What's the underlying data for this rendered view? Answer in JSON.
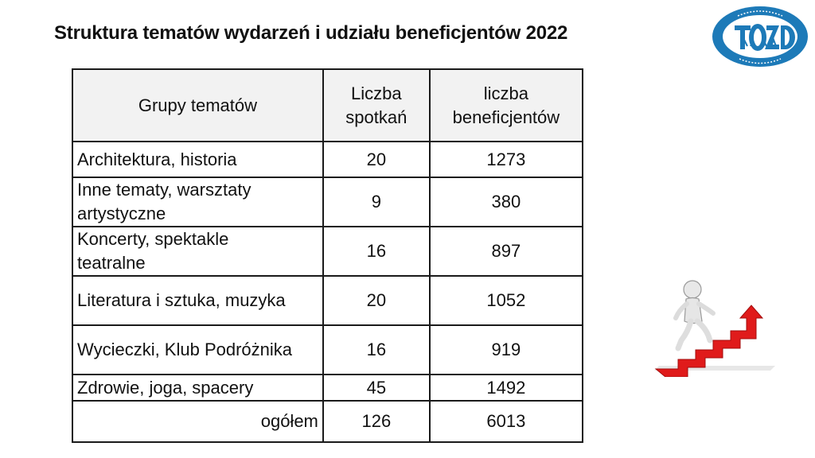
{
  "title": "Struktura  tematów wydarzeń i udziału  beneficjentów 2022",
  "logo": {
    "arc_top": "TOWARZYSTWO OŚWIATOWE",
    "arc_bottom": "ZIEMI DZIERŻONIOWSKIEJ",
    "monogram": "TOZD",
    "color": "#1d7ab8"
  },
  "table": {
    "headers": {
      "group": "Grupy tematów",
      "meetings_line1": "Liczba",
      "meetings_line2": "spotkań",
      "beneficiaries_line1": "liczba",
      "beneficiaries_line2": "beneficjentów"
    },
    "rows": [
      {
        "group_line1": "Architektura, historia",
        "group_line2": "",
        "meetings": "20",
        "beneficiaries": "1273"
      },
      {
        "group_line1": "Inne tematy, warsztaty",
        "group_line2": "artystyczne",
        "meetings": "9",
        "beneficiaries": "380"
      },
      {
        "group_line1": "Koncerty, spektakle",
        "group_line2": "teatralne",
        "meetings": "16",
        "beneficiaries": "897"
      },
      {
        "group_line1": "Literatura i sztuka, muzyka",
        "group_line2": "",
        "meetings": "20",
        "beneficiaries": "1052"
      },
      {
        "group_line1": "Wycieczki, Klub Podróżnika",
        "group_line2": "",
        "meetings": "16",
        "beneficiaries": "919"
      },
      {
        "group_line1": "Zdrowie, joga, spacery",
        "group_line2": "",
        "meetings": "45",
        "beneficiaries": "1492"
      }
    ],
    "total": {
      "label": "ogółem",
      "meetings": "126",
      "beneficiaries": "6013"
    }
  },
  "illustration": {
    "stair_color": "#e01b1b"
  }
}
